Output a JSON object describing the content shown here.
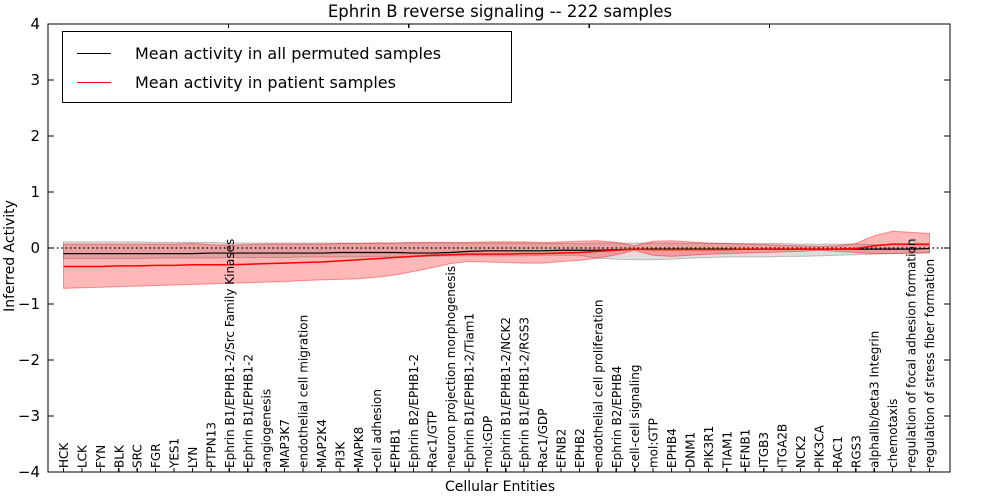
{
  "legend": {
    "entries": [
      {
        "label": "Mean activity in all permuted samples",
        "color": "#000000"
      },
      {
        "label": "Mean activity in patient samples",
        "color": "#ff0000"
      }
    ]
  },
  "chart_data": {
    "type": "line",
    "title": "Ephrin B reverse signaling -- 222 samples",
    "xlabel": "Cellular Entities",
    "ylabel": "Inferred Activity",
    "ylim": [
      -4,
      4
    ],
    "yticks": [
      4,
      3,
      2,
      1,
      0,
      -1,
      -2,
      -3,
      -4
    ],
    "zero_line": {
      "style": "dotted",
      "color": "#000000",
      "y": 0
    },
    "legend_position": "upper left",
    "grid": false,
    "categories": [
      "HCK",
      "LCK",
      "FYN",
      "BLK",
      "SRC",
      "FGR",
      "YES1",
      "LYN",
      "PTPN13",
      "Ephrin B1/EPHB1-2/Src Family Kinases",
      "Ephrin B1/EPHB1-2",
      "angiogenesis",
      "MAP3K7",
      "endothelial cell migration",
      "MAP2K4",
      "PI3K",
      "MAPK8",
      "cell adhesion",
      "EPHB1",
      "Ephrin B2/EPHB1-2",
      "Rac1/GTP",
      "neuron projection morphogenesis",
      "Ephrin B1/EPHB1-2/Tiam1",
      "mol:GDP",
      "Ephrin B1/EPHB1-2/NCK2",
      "Ephrin B1/EPHB1-2/RGS3",
      "Rac1/GDP",
      "EFNB2",
      "EPHB2",
      "endothelial cell proliferation",
      "Ephrin B2/EPHB4",
      "cell-cell signaling",
      "mol:GTP",
      "EPHB4",
      "DNM1",
      "PIK3R1",
      "TIAM1",
      "EFNB1",
      "ITGB3",
      "ITGA2B",
      "NCK2",
      "PIK3CA",
      "RAC1",
      "RGS3",
      "alphaIIb/beta3 Integrin",
      "chemotaxis",
      "regulation of focal adhesion formation",
      "regulation of stress fiber formation"
    ],
    "series": [
      {
        "name": "Mean activity in all permuted samples",
        "color": "#000000",
        "band_color": "rgba(0,0,0,0.13)",
        "band_edge": "rgba(0,0,0,0.22)",
        "values": [
          -0.1,
          -0.1,
          -0.1,
          -0.1,
          -0.1,
          -0.1,
          -0.1,
          -0.1,
          -0.09,
          -0.09,
          -0.09,
          -0.09,
          -0.09,
          -0.09,
          -0.09,
          -0.08,
          -0.08,
          -0.08,
          -0.08,
          -0.09,
          -0.09,
          -0.08,
          -0.06,
          -0.05,
          -0.05,
          -0.05,
          -0.05,
          -0.04,
          -0.04,
          -0.04,
          -0.03,
          -0.02,
          -0.02,
          -0.02,
          -0.02,
          -0.02,
          -0.02,
          -0.02,
          -0.02,
          -0.02,
          -0.02,
          -0.02,
          -0.02,
          -0.02,
          -0.02,
          -0.02,
          -0.02,
          -0.01
        ],
        "band_lo": [
          -0.19,
          -0.19,
          -0.19,
          -0.19,
          -0.19,
          -0.18,
          -0.18,
          -0.18,
          -0.18,
          -0.17,
          -0.17,
          -0.17,
          -0.17,
          -0.16,
          -0.16,
          -0.16,
          -0.16,
          -0.15,
          -0.15,
          -0.15,
          -0.15,
          -0.14,
          -0.14,
          -0.14,
          -0.14,
          -0.14,
          -0.13,
          -0.13,
          -0.13,
          -0.18,
          -0.2,
          -0.21,
          -0.21,
          -0.2,
          -0.18,
          -0.17,
          -0.16,
          -0.16,
          -0.16,
          -0.15,
          -0.15,
          -0.14,
          -0.13,
          -0.12,
          -0.11,
          -0.1,
          -0.1,
          -0.09
        ],
        "band_hi": [
          0.11,
          0.11,
          0.11,
          0.11,
          0.11,
          0.1,
          0.1,
          0.1,
          0.1,
          0.09,
          0.09,
          0.09,
          0.09,
          0.09,
          0.09,
          0.09,
          0.09,
          0.09,
          0.09,
          0.09,
          0.09,
          0.09,
          0.09,
          0.09,
          0.09,
          0.09,
          0.08,
          0.08,
          0.08,
          0.09,
          0.09,
          0.09,
          0.09,
          0.09,
          0.08,
          0.08,
          0.08,
          0.08,
          0.08,
          0.08,
          0.07,
          0.07,
          0.07,
          0.07,
          0.06,
          0.06,
          0.06,
          0.05
        ]
      },
      {
        "name": "Mean activity in patient samples",
        "color": "#ff0000",
        "band_color": "rgba(255,0,0,0.28)",
        "band_edge": "rgba(255,0,0,0.40)",
        "values": [
          -0.33,
          -0.33,
          -0.33,
          -0.32,
          -0.32,
          -0.31,
          -0.31,
          -0.3,
          -0.3,
          -0.3,
          -0.29,
          -0.28,
          -0.27,
          -0.26,
          -0.25,
          -0.23,
          -0.21,
          -0.19,
          -0.17,
          -0.15,
          -0.13,
          -0.12,
          -0.11,
          -0.11,
          -0.11,
          -0.1,
          -0.1,
          -0.09,
          -0.08,
          -0.06,
          -0.04,
          -0.02,
          -0.03,
          -0.03,
          -0.03,
          -0.03,
          -0.03,
          -0.02,
          -0.02,
          -0.02,
          -0.02,
          -0.02,
          -0.02,
          -0.01,
          0.04,
          0.07,
          0.07,
          0.07
        ],
        "band_lo": [
          -0.72,
          -0.71,
          -0.7,
          -0.69,
          -0.68,
          -0.67,
          -0.66,
          -0.65,
          -0.64,
          -0.63,
          -0.62,
          -0.61,
          -0.6,
          -0.58,
          -0.57,
          -0.56,
          -0.55,
          -0.52,
          -0.48,
          -0.42,
          -0.35,
          -0.28,
          -0.24,
          -0.25,
          -0.26,
          -0.27,
          -0.27,
          -0.24,
          -0.22,
          -0.18,
          -0.12,
          -0.04,
          -0.13,
          -0.15,
          -0.13,
          -0.11,
          -0.1,
          -0.09,
          -0.08,
          -0.07,
          -0.06,
          -0.04,
          -0.06,
          -0.08,
          -0.1,
          -0.1,
          -0.09,
          -0.08
        ],
        "band_hi": [
          0.07,
          0.07,
          0.07,
          0.07,
          0.07,
          0.07,
          0.07,
          0.08,
          0.06,
          0.05,
          0.06,
          0.07,
          0.07,
          0.07,
          0.07,
          0.08,
          0.08,
          0.09,
          0.09,
          0.1,
          0.1,
          0.1,
          0.1,
          0.11,
          0.11,
          0.11,
          0.1,
          0.11,
          0.12,
          0.13,
          0.1,
          0.04,
          0.12,
          0.13,
          0.11,
          0.09,
          0.08,
          0.07,
          0.06,
          0.05,
          0.04,
          0.03,
          0.04,
          0.08,
          0.22,
          0.3,
          0.28,
          0.26
        ]
      }
    ]
  }
}
